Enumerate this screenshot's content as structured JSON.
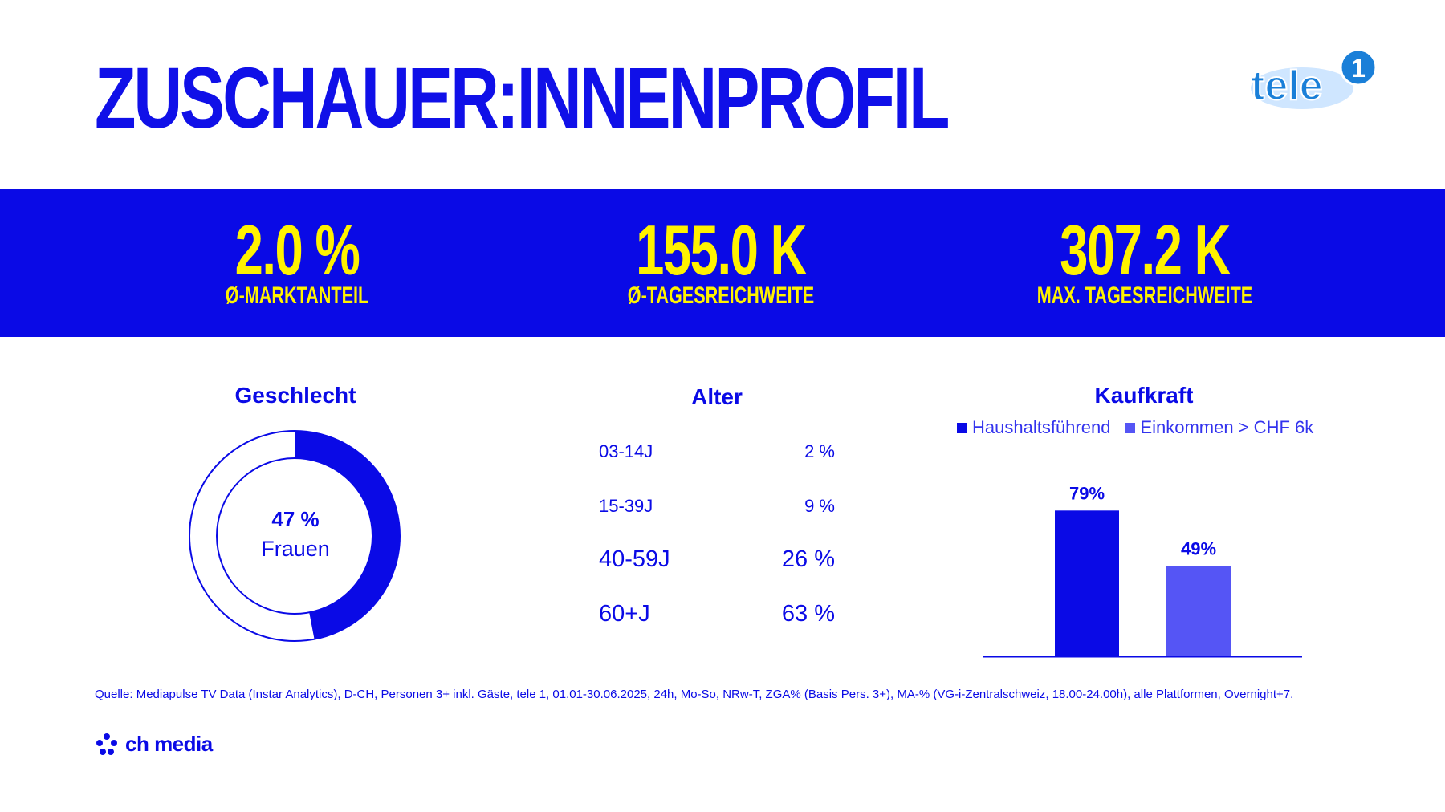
{
  "title": "ZUSCHAUER:INNENPROFIL",
  "logo": {
    "text": "tele",
    "number": "1"
  },
  "kpis": [
    {
      "value": "2.0 %",
      "label": "Ø-MARKTANTEIL"
    },
    {
      "value": "155.0 K",
      "label": "Ø-TAGESREICHWEITE"
    },
    {
      "value": "307.2 K",
      "label": "MAX. TAGESREICHWEITE"
    }
  ],
  "gender": {
    "heading": "Geschlecht",
    "value_text": "47 %",
    "label": "Frauen"
  },
  "age": {
    "heading": "Alter",
    "rows": [
      {
        "group": "03-14J",
        "share": "2 %"
      },
      {
        "group": "15-39J",
        "share": "9 %"
      },
      {
        "group": "40-59J",
        "share": "26 %"
      },
      {
        "group": "60+J",
        "share": "63 %"
      }
    ]
  },
  "kaufkraft": {
    "heading": "Kaufkraft"
  },
  "colors": {
    "blue": "#0a0ae6",
    "light_blue": "#5555f5",
    "yellow": "#fff200"
  },
  "chart_data": [
    {
      "type": "pie",
      "title": "Geschlecht",
      "categories": [
        "Frauen",
        ""
      ],
      "values": [
        47,
        53
      ]
    },
    {
      "type": "table",
      "title": "Alter",
      "categories": [
        "03-14J",
        "15-39J",
        "40-59J",
        "60+J"
      ],
      "values": [
        2,
        9,
        26,
        63
      ]
    },
    {
      "type": "bar",
      "title": "Kaufkraft",
      "categories": [
        "Haushaltsführend",
        "Einkommen > CHF 6k"
      ],
      "series": [
        {
          "name": "Haushaltsführend",
          "values": [
            79,
            null
          ],
          "labels": [
            "79%",
            null
          ]
        },
        {
          "name": "Einkommen > CHF 6k",
          "values": [
            null,
            49
          ],
          "labels": [
            null,
            "49%"
          ]
        }
      ],
      "ylim": [
        0,
        100
      ],
      "legend": "top"
    }
  ],
  "footer": {
    "source": "Quelle: Mediapulse TV Data (Instar Analytics), D-CH, Personen 3+ inkl. Gäste, tele 1, 01.01-30.06.2025, 24h, Mo-So, NRw-T, ZGA% (Basis Pers. 3+), MA-% (VG-i-Zentralschweiz, 18.00-24.00h), alle Plattformen, Overnight+7.",
    "brand": "ch media"
  }
}
